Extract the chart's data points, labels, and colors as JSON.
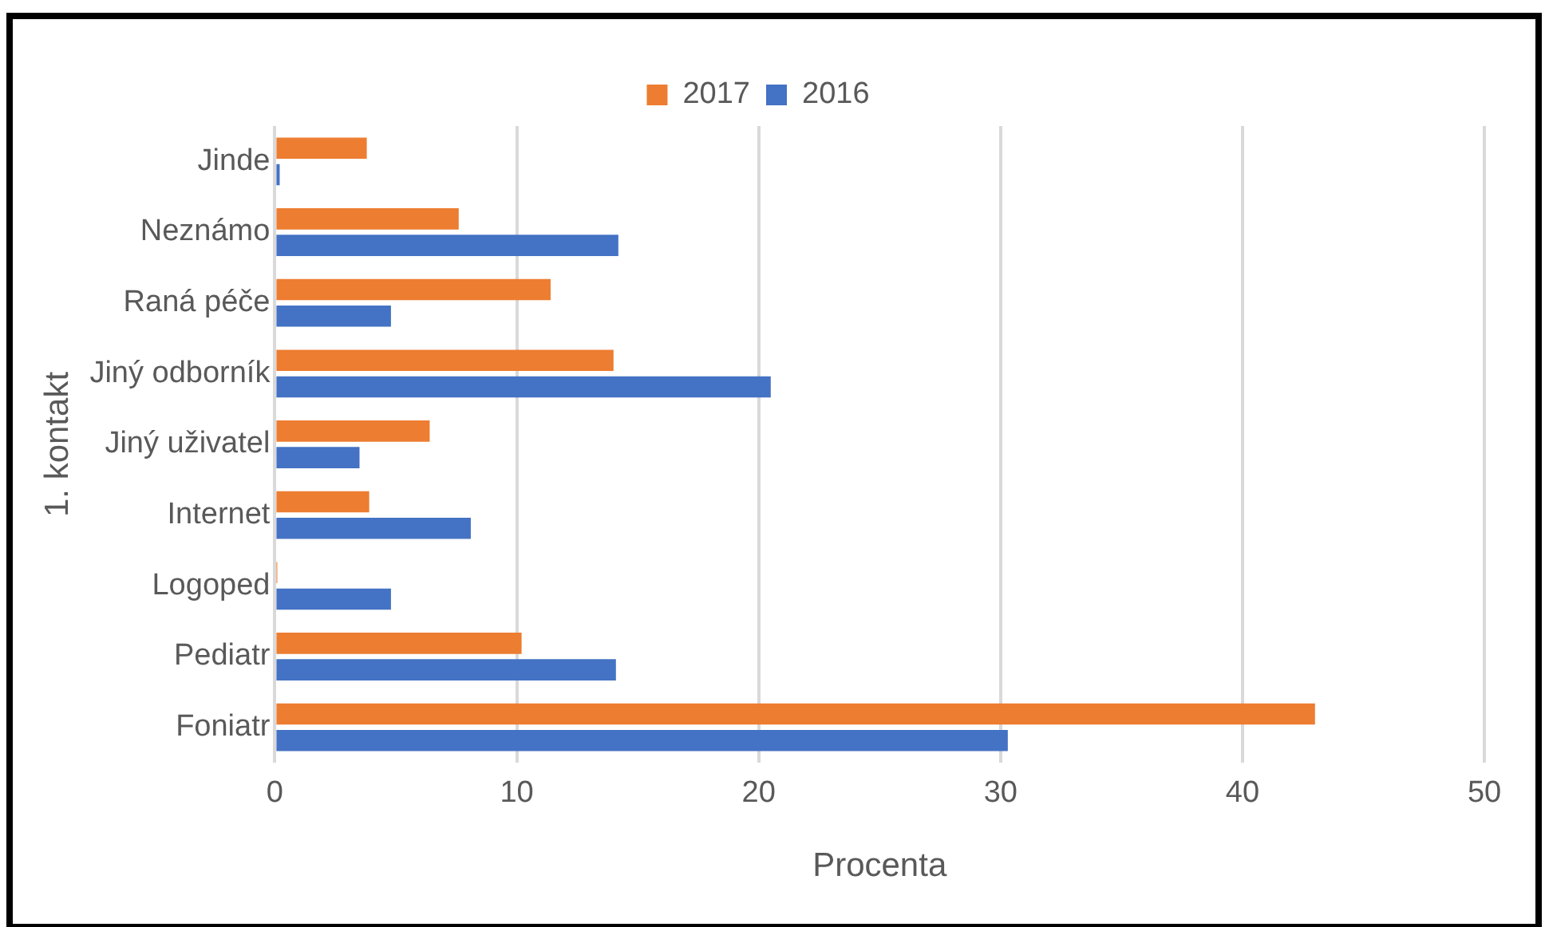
{
  "chart_data": {
    "type": "bar",
    "orientation": "horizontal",
    "xlabel": "Procenta",
    "ylabel": "1. kontakt",
    "categories": [
      "Jinde",
      "Neznámo",
      "Raná péče",
      "Jiný odborník",
      "Jiný uživatel",
      "Internet",
      "Logoped",
      "Pediatr",
      "Foniatr"
    ],
    "series": [
      {
        "name": "2017",
        "color": "#ed7d31",
        "values": [
          3.8,
          7.6,
          11.4,
          14.0,
          6.4,
          3.9,
          0.1,
          10.2,
          43.0
        ]
      },
      {
        "name": "2016",
        "color": "#4472c4",
        "values": [
          0.2,
          14.2,
          4.8,
          20.5,
          3.5,
          8.1,
          4.8,
          14.1,
          30.3
        ]
      }
    ],
    "xlim": [
      0,
      50
    ],
    "xticks": [
      0,
      10,
      20,
      30,
      40,
      50
    ],
    "grid": "x",
    "legend": "top"
  }
}
